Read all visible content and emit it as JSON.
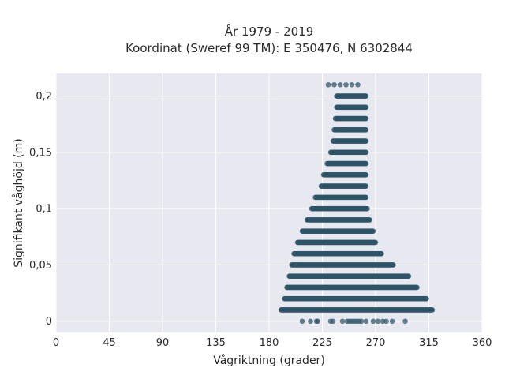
{
  "chart_data": {
    "type": "scatter",
    "title": "År 1979 - 2019",
    "subtitle": "Koordinat (Sweref 99 TM): E 350476, N 6302844",
    "xlabel": "Vågriktning (grader)",
    "ylabel": "Signifikant våghöjd (m)",
    "xlim": [
      0,
      360
    ],
    "ylim": [
      -0.01,
      0.22
    ],
    "x_ticks": [
      {
        "value": 0,
        "label": "0"
      },
      {
        "value": 45,
        "label": "45"
      },
      {
        "value": 90,
        "label": "90"
      },
      {
        "value": 135,
        "label": "135"
      },
      {
        "value": 180,
        "label": "180"
      },
      {
        "value": 225,
        "label": "225"
      },
      {
        "value": 270,
        "label": "270"
      },
      {
        "value": 315,
        "label": "315"
      },
      {
        "value": 360,
        "label": "360"
      }
    ],
    "y_ticks": [
      {
        "value": 0,
        "label": "0"
      },
      {
        "value": 0.05,
        "label": "0,05"
      },
      {
        "value": 0.1,
        "label": "0,1"
      },
      {
        "value": 0.15,
        "label": "0,15"
      },
      {
        "value": 0.2,
        "label": "0,2"
      }
    ],
    "grid": true,
    "background": "#e8e9f0",
    "grid_color": "#ffffff",
    "marker_color": "#2e5468",
    "point_bands": [
      {
        "y": 0.21,
        "xs": [
          230,
          235,
          240,
          245,
          250,
          255
        ]
      },
      {
        "y": 0.2,
        "x_min": 237,
        "x_max": 262
      },
      {
        "y": 0.19,
        "x_min": 237,
        "x_max": 262
      },
      {
        "y": 0.18,
        "x_min": 236,
        "x_max": 262
      },
      {
        "y": 0.17,
        "x_min": 235,
        "x_max": 262
      },
      {
        "y": 0.16,
        "x_min": 234,
        "x_max": 262
      },
      {
        "y": 0.15,
        "x_min": 232,
        "x_max": 262
      },
      {
        "y": 0.14,
        "x_min": 229,
        "x_max": 262
      },
      {
        "y": 0.13,
        "x_min": 226,
        "x_max": 262
      },
      {
        "y": 0.12,
        "x_min": 224,
        "x_max": 262
      },
      {
        "y": 0.11,
        "x_min": 219,
        "x_max": 262
      },
      {
        "y": 0.1,
        "x_min": 216,
        "x_max": 263
      },
      {
        "y": 0.09,
        "x_min": 212,
        "x_max": 265
      },
      {
        "y": 0.08,
        "x_min": 208,
        "x_max": 268
      },
      {
        "y": 0.07,
        "x_min": 204,
        "x_max": 270
      },
      {
        "y": 0.06,
        "x_min": 201,
        "x_max": 275
      },
      {
        "y": 0.05,
        "x_min": 199,
        "x_max": 285
      },
      {
        "y": 0.04,
        "x_min": 197,
        "x_max": 298
      },
      {
        "y": 0.03,
        "x_min": 195,
        "x_max": 305
      },
      {
        "y": 0.02,
        "x_min": 193,
        "x_max": 313
      },
      {
        "y": 0.01,
        "x_min": 190,
        "x_max": 318
      },
      {
        "y": 0.0,
        "xs": [
          208,
          215,
          220,
          221,
          232,
          234,
          242,
          246,
          248,
          250,
          252,
          254,
          256,
          258,
          262,
          268,
          272,
          276,
          279,
          284,
          295
        ]
      }
    ]
  }
}
